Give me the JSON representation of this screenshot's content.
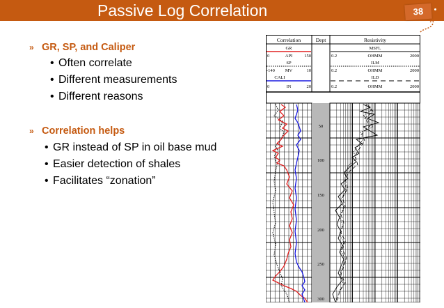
{
  "slide": {
    "title": "Passive Log Correlation",
    "page_number": "38",
    "colors": {
      "accent": "#c55a11",
      "gr_curve": "#e02020",
      "caliper_curve": "#1a1ae0"
    }
  },
  "sections": [
    {
      "heading": "GR, SP, and Caliper",
      "items": [
        "Often correlate",
        "Different measurements",
        "Different reasons"
      ]
    },
    {
      "heading": "Correlation helps",
      "items": [
        "GR instead of SP in oil base mud",
        "Easier detection of shales",
        "Facilitates “zonation”"
      ]
    }
  ],
  "log_figure": {
    "headers": {
      "correlation": "Correlation",
      "depth": "Dept",
      "resistivity": "Resistivity"
    },
    "left_tracks": [
      {
        "name": "GR",
        "min": "0",
        "unit": "API",
        "max": "150"
      },
      {
        "name": "SP",
        "min": "",
        "unit": "",
        "max": ""
      },
      {
        "name": "",
        "min": "-140",
        "unit": "MV",
        "max": "10"
      },
      {
        "name": "CALI",
        "min": "",
        "unit": "",
        "max": ""
      },
      {
        "name": "",
        "min": "0",
        "unit": "IN",
        "max": "20"
      }
    ],
    "right_tracks": [
      {
        "name": "MSFL",
        "min": "",
        "unit": "",
        "max": ""
      },
      {
        "name": "",
        "min": "0.2",
        "unit": "OHMM",
        "max": "2000"
      },
      {
        "name": "ILM",
        "min": "",
        "unit": "",
        "max": ""
      },
      {
        "name": "",
        "min": "0.2",
        "unit": "OHMM",
        "max": "2000"
      },
      {
        "name": "ILD",
        "min": "",
        "unit": "",
        "max": ""
      },
      {
        "name": "",
        "min": "0.2",
        "unit": "OHMM",
        "max": "2000"
      }
    ],
    "depth_labels": [
      "50",
      "100",
      "150",
      "200",
      "250",
      "300"
    ]
  }
}
